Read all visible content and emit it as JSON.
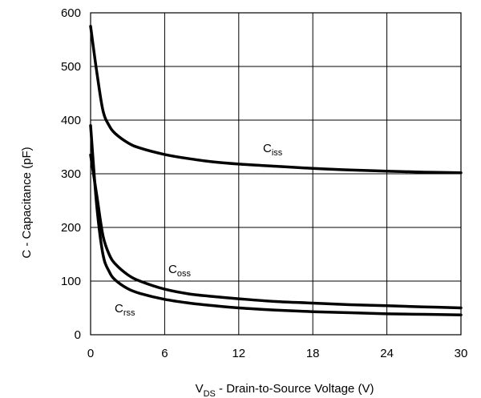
{
  "chart_data": {
    "type": "line",
    "xlabel": {
      "main": "V",
      "sub": "DS",
      "rest": " - Drain-to-Source Voltage (V)"
    },
    "ylabel": "C - Capacitance (pF)",
    "xlim": [
      0,
      30
    ],
    "ylim": [
      0,
      600
    ],
    "xticks": [
      "0",
      "6",
      "12",
      "18",
      "24",
      "30"
    ],
    "yticks": [
      "0",
      "100",
      "200",
      "300",
      "400",
      "500",
      "600"
    ],
    "grid": true,
    "series": [
      {
        "name": {
          "main": "C",
          "sub": "iss"
        },
        "x": [
          0,
          0.5,
          1,
          1.5,
          2,
          3,
          4,
          6,
          8,
          10,
          12,
          15,
          18,
          21,
          24,
          27,
          30
        ],
        "y": [
          575,
          490,
          418,
          390,
          375,
          358,
          348,
          336,
          328,
          322,
          318,
          314,
          310,
          307,
          305,
          303,
          302
        ]
      },
      {
        "name": {
          "main": "C",
          "sub": "oss"
        },
        "x": [
          0,
          0.5,
          1,
          1.5,
          2,
          3,
          4,
          6,
          8,
          10,
          12,
          15,
          18,
          21,
          24,
          27,
          30
        ],
        "y": [
          335,
          260,
          185,
          150,
          132,
          112,
          100,
          85,
          76,
          71,
          67,
          62,
          59,
          56,
          54,
          52,
          50
        ]
      },
      {
        "name": {
          "main": "C",
          "sub": "rss"
        },
        "x": [
          0,
          0.5,
          1,
          1.5,
          2,
          3,
          4,
          6,
          8,
          10,
          12,
          15,
          18,
          21,
          24,
          27,
          30
        ],
        "y": [
          390,
          240,
          150,
          118,
          102,
          86,
          77,
          66,
          59,
          54,
          50,
          46,
          43,
          41,
          39,
          38,
          37
        ]
      }
    ]
  }
}
